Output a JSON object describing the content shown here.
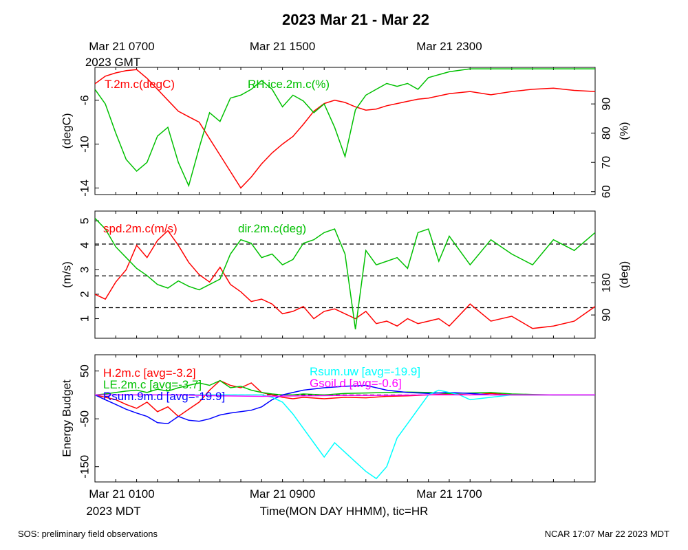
{
  "title": "2023 Mar 21 - Mar 22",
  "footer_left": "SOS: preliminary field observations",
  "footer_right": "NCAR 17:07 Mar 22 2023 MDT",
  "top_axis": {
    "ticks": [
      {
        "hour": 0,
        "label": "Mar 21 0700"
      },
      {
        "hour": 8,
        "label": "Mar 21 1500"
      },
      {
        "hour": 16,
        "label": "Mar 21 2300"
      }
    ],
    "sublabel": "2023 GMT"
  },
  "bottom_axis": {
    "ticks": [
      {
        "hour": 0,
        "label": "Mar 21 0100"
      },
      {
        "hour": 8,
        "label": "Mar 21 0900"
      },
      {
        "hour": 16,
        "label": "Mar 21 1700"
      }
    ],
    "sublabel": "2023 MDT",
    "xlabel": "Time(MON DAY HHMM), tic=HR"
  },
  "colors": {
    "red": "#ff0000",
    "green": "#00c000",
    "blue": "#0000ff",
    "cyan": "#00ffff",
    "magenta": "#ff00ff",
    "black": "#000000"
  },
  "chart_data": [
    {
      "type": "line",
      "xlim": [
        -1,
        23
      ],
      "left_axis": {
        "label": "(degC)",
        "ticks": [
          -6,
          -10,
          -14
        ],
        "ylim": [
          -14.6,
          -3.0
        ]
      },
      "right_axis": {
        "label": "(%)",
        "ticks": [
          60,
          70,
          80,
          90
        ],
        "ylim": [
          59,
          102.5
        ]
      },
      "series": [
        {
          "name": "T.2m.c(degC)",
          "color": "#ff0000",
          "axis": "left",
          "x": [
            -1,
            -0.5,
            0,
            0.5,
            1,
            1.5,
            2,
            2.5,
            3,
            3.5,
            4,
            4.5,
            5,
            5.5,
            6,
            6.5,
            7,
            7.5,
            8,
            8.5,
            9,
            9.5,
            10,
            10.5,
            11,
            11.5,
            12,
            12.5,
            13,
            13.5,
            14,
            14.5,
            15,
            15.5,
            16,
            17,
            18,
            19,
            20,
            21,
            22,
            23
          ],
          "values": [
            -4.5,
            -3.8,
            -3.5,
            -3.3,
            -3.2,
            -4.0,
            -5.0,
            -6.0,
            -7.0,
            -7.5,
            -8.0,
            -9.5,
            -11.0,
            -12.5,
            -14.0,
            -13.0,
            -11.8,
            -10.8,
            -10.0,
            -9.3,
            -8.2,
            -7.0,
            -6.3,
            -6.0,
            -6.2,
            -6.6,
            -6.9,
            -6.8,
            -6.5,
            -6.3,
            -6.1,
            -5.9,
            -5.8,
            -5.6,
            -5.4,
            -5.2,
            -5.5,
            -5.2,
            -5.0,
            -4.9,
            -5.1,
            -5.2
          ]
        },
        {
          "name": "RH.ice.2m.c(%)",
          "color": "#00c000",
          "axis": "right",
          "x": [
            -1,
            -0.5,
            0,
            0.5,
            1,
            1.5,
            2,
            2.5,
            3,
            3.5,
            4,
            4.5,
            5,
            5.5,
            6,
            6.5,
            7,
            7.5,
            8,
            8.5,
            9,
            9.5,
            10,
            10.5,
            11,
            11.5,
            12,
            12.5,
            13,
            13.5,
            14,
            14.5,
            15,
            15.5,
            16,
            17,
            18,
            19,
            20,
            21,
            22,
            23
          ],
          "values": [
            95,
            90,
            80,
            71,
            67,
            70,
            79,
            82,
            70,
            62,
            75,
            87,
            84,
            92,
            93,
            95,
            98,
            95,
            89,
            93,
            91,
            87,
            90,
            82,
            72,
            88,
            93,
            95,
            97,
            96,
            97,
            95,
            99,
            100,
            101,
            102,
            102,
            102,
            102,
            102,
            102,
            102
          ]
        }
      ]
    },
    {
      "type": "line",
      "xlim": [
        -1,
        23
      ],
      "left_axis": {
        "label": "(m/s)",
        "ticks": [
          1,
          2,
          3,
          4,
          5
        ],
        "ylim": [
          0.2,
          5.4
        ]
      },
      "right_axis": {
        "label": "(deg)",
        "ticks": [
          90,
          180
        ],
        "ylim": [
          25,
          380
        ]
      },
      "reference_lines_left": [
        1.45,
        2.75,
        4.05
      ],
      "series": [
        {
          "name": "spd.2m.c(m/s)",
          "color": "#ff0000",
          "axis": "left",
          "x": [
            -1,
            -0.5,
            0,
            0.5,
            1,
            1.5,
            2,
            2.5,
            3,
            3.5,
            4,
            4.5,
            5,
            5.5,
            6,
            6.5,
            7,
            7.5,
            8,
            8.5,
            9,
            9.5,
            10,
            10.5,
            11,
            11.5,
            12,
            12.5,
            13,
            13.5,
            14,
            14.5,
            15,
            15.5,
            16,
            17,
            18,
            19,
            20,
            21,
            22,
            23
          ],
          "values": [
            2.0,
            1.8,
            2.5,
            3.0,
            4.0,
            3.5,
            4.2,
            4.6,
            4.0,
            3.3,
            2.8,
            2.5,
            3.1,
            2.4,
            2.1,
            1.7,
            1.8,
            1.6,
            1.2,
            1.3,
            1.5,
            1.0,
            1.3,
            1.4,
            1.2,
            1.0,
            1.3,
            0.8,
            0.9,
            0.7,
            1.0,
            0.8,
            0.9,
            1.0,
            0.7,
            1.6,
            0.9,
            1.1,
            0.6,
            0.7,
            0.9,
            1.5
          ]
        },
        {
          "name": "dir.2m.c(deg)",
          "color": "#00c000",
          "axis": "right",
          "x": [
            -1,
            -0.5,
            0,
            0.5,
            1,
            1.5,
            2,
            2.5,
            3,
            3.5,
            4,
            4.5,
            5,
            5.5,
            6,
            6.5,
            7,
            7.5,
            8,
            8.5,
            9,
            9.5,
            10,
            10.5,
            11,
            11.5,
            12,
            12.5,
            13,
            13.5,
            14,
            14.5,
            15,
            15.5,
            16,
            17,
            18,
            19,
            20,
            21,
            22,
            23
          ],
          "values": [
            360,
            330,
            280,
            250,
            220,
            200,
            175,
            165,
            185,
            170,
            160,
            175,
            190,
            260,
            300,
            290,
            250,
            260,
            230,
            245,
            290,
            300,
            320,
            330,
            260,
            50,
            270,
            230,
            240,
            250,
            220,
            320,
            330,
            240,
            310,
            230,
            300,
            260,
            230,
            300,
            270,
            320
          ]
        }
      ]
    },
    {
      "type": "line",
      "xlim": [
        -1,
        23
      ],
      "left_axis": {
        "label": "Energy Budget",
        "ticks": [
          50,
          -50,
          -150
        ],
        "ylim": [
          -182,
          84
        ]
      },
      "reference_lines_left": [
        0
      ],
      "legend_left": [
        "H.2m.c [avg=-3.2]",
        "LE.2m.c [avg=-3.7]",
        "Rsum.9m.d [avg=-19.9]"
      ],
      "legend_right": [
        "Rsum.uw [avg=-19.9]",
        "Gsoil.d [avg=-0.6]"
      ],
      "series": [
        {
          "name": "H.2m.c",
          "color": "#ff0000",
          "x": [
            -1,
            -0.5,
            0,
            0.5,
            1,
            1.5,
            2,
            2.5,
            3,
            3.5,
            4,
            4.5,
            5,
            5.5,
            6,
            6.5,
            7,
            7.5,
            8,
            8.5,
            9,
            10,
            11,
            12,
            13,
            14,
            15,
            16,
            17,
            18,
            19,
            20,
            21,
            22,
            23
          ],
          "values": [
            0,
            -5,
            -10,
            -20,
            -28,
            -15,
            -35,
            -25,
            -45,
            -30,
            -15,
            10,
            30,
            20,
            15,
            25,
            5,
            0,
            -5,
            -8,
            -5,
            -8,
            -5,
            -6,
            -3,
            -2,
            0,
            2,
            0,
            3,
            0,
            0,
            0,
            0,
            0
          ]
        },
        {
          "name": "LE.2m.c",
          "color": "#00c000",
          "x": [
            -1,
            -0.5,
            0,
            0.5,
            1,
            1.5,
            2,
            2.5,
            3,
            3.5,
            4,
            4.5,
            5,
            5.5,
            6,
            6.5,
            7,
            7.5,
            8,
            8.5,
            9,
            10,
            11,
            12,
            13,
            14,
            15,
            16,
            17,
            18,
            19,
            20,
            21,
            22,
            23
          ],
          "values": [
            0,
            2,
            5,
            8,
            10,
            5,
            12,
            8,
            15,
            20,
            25,
            20,
            30,
            15,
            18,
            10,
            5,
            2,
            0,
            0,
            2,
            0,
            3,
            4,
            5,
            6,
            5,
            3,
            4,
            5,
            2,
            1,
            0,
            0,
            0
          ]
        },
        {
          "name": "Rsum.9m.d",
          "color": "#0000ff",
          "x": [
            -1,
            -0.5,
            0,
            0.5,
            1,
            1.5,
            2,
            2.5,
            3,
            3.5,
            4,
            4.5,
            5,
            5.5,
            6,
            6.5,
            7,
            7.5,
            8,
            8.5,
            9,
            10,
            11,
            12,
            13,
            14,
            15,
            16,
            17,
            18,
            19,
            20,
            21,
            22,
            23
          ],
          "values": [
            0,
            -10,
            -20,
            -30,
            -38,
            -45,
            -58,
            -60,
            -45,
            -53,
            -55,
            -50,
            -42,
            -38,
            -35,
            -32,
            -25,
            -10,
            0,
            5,
            10,
            15,
            18,
            20,
            10,
            5,
            3,
            5,
            3,
            0,
            0,
            0,
            0,
            0,
            0
          ]
        },
        {
          "name": "Rsum.uw",
          "color": "#00ffff",
          "x": [
            -1,
            7,
            7.5,
            8,
            8.5,
            9,
            9.5,
            10,
            10.5,
            11,
            11.5,
            12,
            12.5,
            13,
            13.5,
            14,
            14.5,
            15,
            15.5,
            16,
            16.5,
            17,
            18,
            19,
            20,
            21,
            22,
            23
          ],
          "values": [
            0,
            0,
            -5,
            -15,
            -40,
            -70,
            -100,
            -130,
            -100,
            -120,
            -140,
            -160,
            -175,
            -150,
            -90,
            -60,
            -30,
            0,
            10,
            5,
            0,
            -10,
            -5,
            0,
            0,
            0,
            0,
            0
          ]
        },
        {
          "name": "Gsoil.d",
          "color": "#ff00ff",
          "x": [
            -1,
            3,
            5,
            7,
            9,
            11,
            13,
            15,
            17,
            19,
            21,
            23
          ],
          "values": [
            0,
            0,
            -2,
            -3,
            -2,
            -1,
            -1,
            0,
            0,
            0,
            0,
            0
          ]
        }
      ]
    }
  ]
}
